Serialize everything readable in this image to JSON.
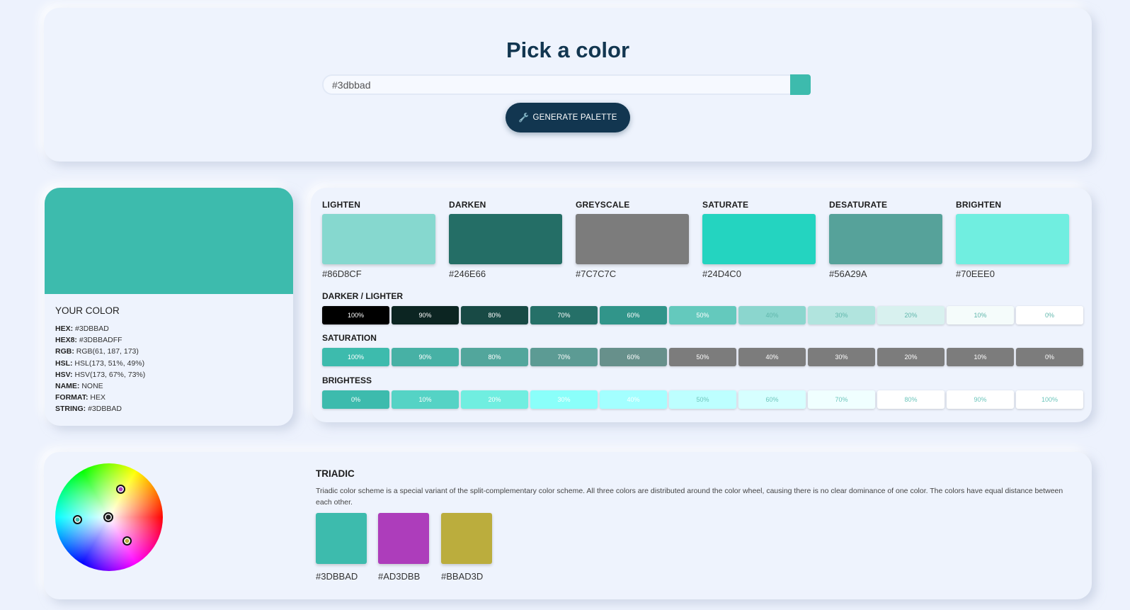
{
  "header": {
    "title": "Pick a color",
    "input_value": "#3dbbad",
    "generate_label": "GENERATE PALETTE",
    "swatch_color": "#3DBBAD"
  },
  "your_color": {
    "title": "YOUR COLOR",
    "color": "#3DBBAD",
    "fields": [
      {
        "key": "HEX:",
        "value": "#3DBBAD"
      },
      {
        "key": "HEX8:",
        "value": "#3DBBADFF"
      },
      {
        "key": "RGB:",
        "value": "RGB(61, 187, 173)"
      },
      {
        "key": "HSL:",
        "value": "HSL(173, 51%, 49%)"
      },
      {
        "key": "HSV:",
        "value": "HSV(173, 67%, 73%)"
      },
      {
        "key": "NAME:",
        "value": "NONE"
      },
      {
        "key": "FORMAT:",
        "value": "HEX"
      },
      {
        "key": "STRING:",
        "value": "#3DBBAD"
      }
    ]
  },
  "variations": [
    {
      "label": "LIGHTEN",
      "color": "#86D8CF",
      "hex": "#86D8CF"
    },
    {
      "label": "DARKEN",
      "color": "#246E66",
      "hex": "#246E66"
    },
    {
      "label": "GREYSCALE",
      "color": "#7C7C7C",
      "hex": "#7C7C7C"
    },
    {
      "label": "SATURATE",
      "color": "#24D4C0",
      "hex": "#24D4C0"
    },
    {
      "label": "DESATURATE",
      "color": "#56A29A",
      "hex": "#56A29A"
    },
    {
      "label": "BRIGHTEN",
      "color": "#70EEE0",
      "hex": "#70EEE0"
    }
  ],
  "darker_lighter": {
    "label": "DARKER / LIGHTER",
    "chips": [
      {
        "text": "100%",
        "bg": "#000000",
        "fg": "#ffffff"
      },
      {
        "text": "90%",
        "bg": "#0c2522",
        "fg": "#ffffff"
      },
      {
        "text": "80%",
        "bg": "#184a45",
        "fg": "#ffffff"
      },
      {
        "text": "70%",
        "bg": "#257068",
        "fg": "#ffffff"
      },
      {
        "text": "60%",
        "bg": "#31958a",
        "fg": "#ffffff"
      },
      {
        "text": "50%",
        "bg": "#64c9bd",
        "fg": "#ffffff"
      },
      {
        "text": "40%",
        "bg": "#8bd6ce",
        "fg": "#5fb6ab"
      },
      {
        "text": "30%",
        "bg": "#b1e4de",
        "fg": "#5fb6ab"
      },
      {
        "text": "20%",
        "bg": "#d8f1ef",
        "fg": "#5fb6ab"
      },
      {
        "text": "10%",
        "bg": "#f5fcfb",
        "fg": "#5fb6ab"
      },
      {
        "text": "0%",
        "bg": "#ffffff",
        "fg": "#5fb6ab"
      }
    ]
  },
  "saturation": {
    "label": "SATURATION",
    "chips": [
      {
        "text": "100%",
        "bg": "#3dbbad",
        "fg": "#ffffff"
      },
      {
        "text": "90%",
        "bg": "#47b1a5",
        "fg": "#ffffff"
      },
      {
        "text": "80%",
        "bg": "#52a69c",
        "fg": "#ffffff"
      },
      {
        "text": "70%",
        "bg": "#5c9b94",
        "fg": "#ffffff"
      },
      {
        "text": "60%",
        "bg": "#67908b",
        "fg": "#ffffff"
      },
      {
        "text": "50%",
        "bg": "#7c7c7c",
        "fg": "#ffffff"
      },
      {
        "text": "40%",
        "bg": "#7c7c7c",
        "fg": "#ffffff"
      },
      {
        "text": "30%",
        "bg": "#7c7c7c",
        "fg": "#ffffff"
      },
      {
        "text": "20%",
        "bg": "#7c7c7c",
        "fg": "#ffffff"
      },
      {
        "text": "10%",
        "bg": "#7c7c7c",
        "fg": "#ffffff"
      },
      {
        "text": "0%",
        "bg": "#7c7c7c",
        "fg": "#ffffff"
      }
    ]
  },
  "brightness": {
    "label": "BRIGHTESS",
    "chips": [
      {
        "text": "0%",
        "bg": "#3dbbad",
        "fg": "#ffffff"
      },
      {
        "text": "10%",
        "bg": "#55d3c5",
        "fg": "#ffffff"
      },
      {
        "text": "20%",
        "bg": "#70eee0",
        "fg": "#ffffff"
      },
      {
        "text": "30%",
        "bg": "#8afffa",
        "fg": "#ffffff"
      },
      {
        "text": "40%",
        "bg": "#a3ffff",
        "fg": "#ffffff"
      },
      {
        "text": "50%",
        "bg": "#bdffff",
        "fg": "#6cc5bb"
      },
      {
        "text": "60%",
        "bg": "#d6ffff",
        "fg": "#6cc5bb"
      },
      {
        "text": "70%",
        "bg": "#f0ffff",
        "fg": "#6cc5bb"
      },
      {
        "text": "80%",
        "bg": "#ffffff",
        "fg": "#6cc5bb"
      },
      {
        "text": "90%",
        "bg": "#ffffff",
        "fg": "#6cc5bb"
      },
      {
        "text": "100%",
        "bg": "#ffffff",
        "fg": "#6cc5bb"
      }
    ]
  },
  "triadic": {
    "title": "TRIADIC",
    "description": "Triadic color scheme is a special variant of the split-complementary color scheme. All three colors are distributed around the color wheel, causing there is no clear dominance of one color. The colors have equal distance between each other.",
    "colors": [
      {
        "color": "#3DBBAD",
        "hex": "#3DBBAD"
      },
      {
        "color": "#AD3DBB",
        "hex": "#AD3DBB"
      },
      {
        "color": "#BBAD3D",
        "hex": "#BBAD3D"
      }
    ]
  }
}
